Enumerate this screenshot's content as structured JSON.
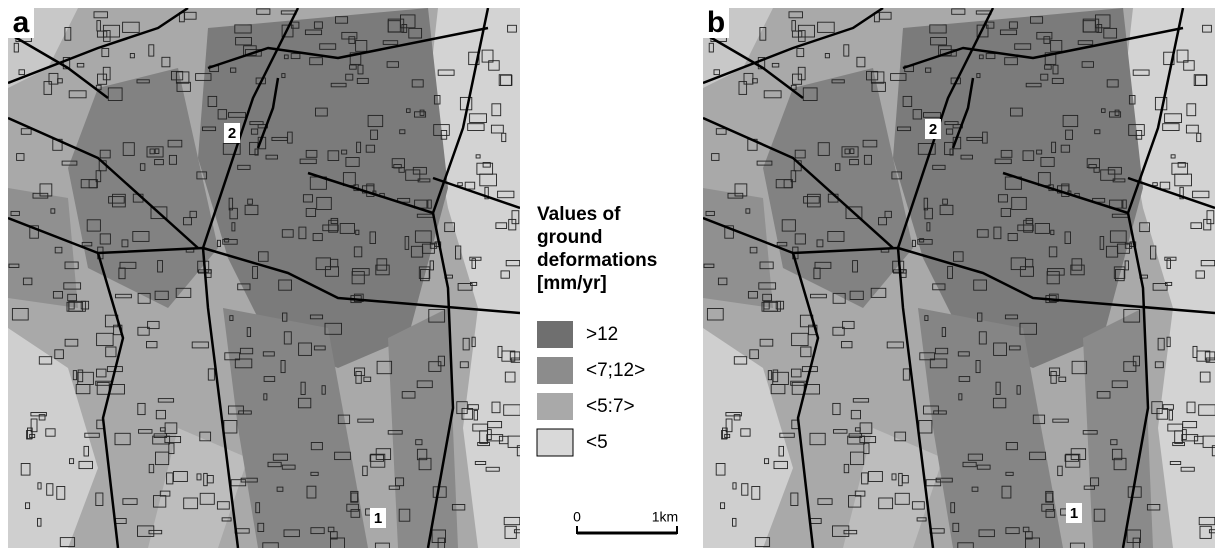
{
  "panels": [
    {
      "label": "a",
      "markers": [
        {
          "label": "2"
        },
        {
          "label": "1"
        }
      ]
    },
    {
      "label": "b",
      "markers": [
        {
          "label": "2"
        },
        {
          "label": "1"
        }
      ]
    }
  ],
  "legend": {
    "title": [
      "Values of",
      "ground",
      "deformations",
      "[mm/yr]"
    ],
    "items": [
      {
        "label": ">12",
        "color": "#6f6f6f"
      },
      {
        "label": "<7;12>",
        "color": "#8c8c8c"
      },
      {
        "label": "<5:7>",
        "color": "#a9a9a9"
      },
      {
        "label": "<5",
        "color": "#d9d9d9"
      }
    ]
  },
  "scale_bar": {
    "start": "0",
    "end": "1km"
  }
}
